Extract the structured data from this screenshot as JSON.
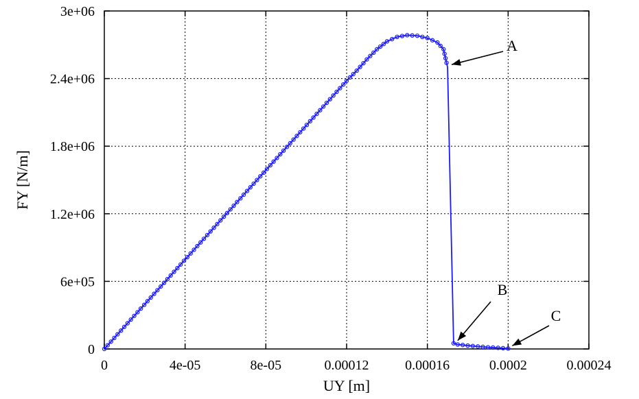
{
  "chart_data": {
    "type": "line",
    "xlabel": "UY [m]",
    "ylabel": "FY [N/m]",
    "xlim": [
      0,
      0.00024
    ],
    "ylim": [
      0,
      3000000
    ],
    "grid": true,
    "x_ticks": [
      {
        "value": 0,
        "label": "0"
      },
      {
        "value": 4e-05,
        "label": "4e-05"
      },
      {
        "value": 8e-05,
        "label": "8e-05"
      },
      {
        "value": 0.00012,
        "label": "0.00012"
      },
      {
        "value": 0.00016,
        "label": "0.00016"
      },
      {
        "value": 0.0002,
        "label": "0.0002"
      },
      {
        "value": 0.00024,
        "label": "0.00024"
      }
    ],
    "y_ticks": [
      {
        "value": 0,
        "label": "0"
      },
      {
        "value": 600000,
        "label": "6e+05"
      },
      {
        "value": 1200000,
        "label": "1.2e+06"
      },
      {
        "value": 1800000,
        "label": "1.8e+06"
      },
      {
        "value": 2400000,
        "label": "2.4e+06"
      },
      {
        "value": 3000000,
        "label": "3e+06"
      }
    ],
    "series": [
      {
        "color": "#1a1aff",
        "marker": "circle",
        "points": [
          [
            0,
            0
          ],
          [
            0.00012,
            2380000
          ],
          [
            0.000125,
            2470000
          ],
          [
            0.00013,
            2570000
          ],
          [
            0.000135,
            2660000
          ],
          [
            0.00014,
            2730000
          ],
          [
            0.000145,
            2770000
          ],
          [
            0.00015,
            2785000
          ],
          [
            0.000155,
            2780000
          ],
          [
            0.00016,
            2760000
          ],
          [
            0.000165,
            2720000
          ],
          [
            0.000168,
            2660000
          ],
          [
            0.00017,
            2500000
          ],
          [
            0.000173,
            50000
          ],
          [
            0.000175,
            40000
          ],
          [
            0.00018,
            30000
          ],
          [
            0.000185,
            22000
          ],
          [
            0.00019,
            15000
          ],
          [
            0.000195,
            10000
          ],
          [
            0.0002,
            4000
          ]
        ]
      }
    ],
    "annotations": [
      {
        "text": "A",
        "x": 0.00017,
        "y": 2500000
      },
      {
        "text": "B",
        "x": 0.000173,
        "y": 50000
      },
      {
        "text": "C",
        "x": 0.0002,
        "y": 4000
      }
    ]
  }
}
